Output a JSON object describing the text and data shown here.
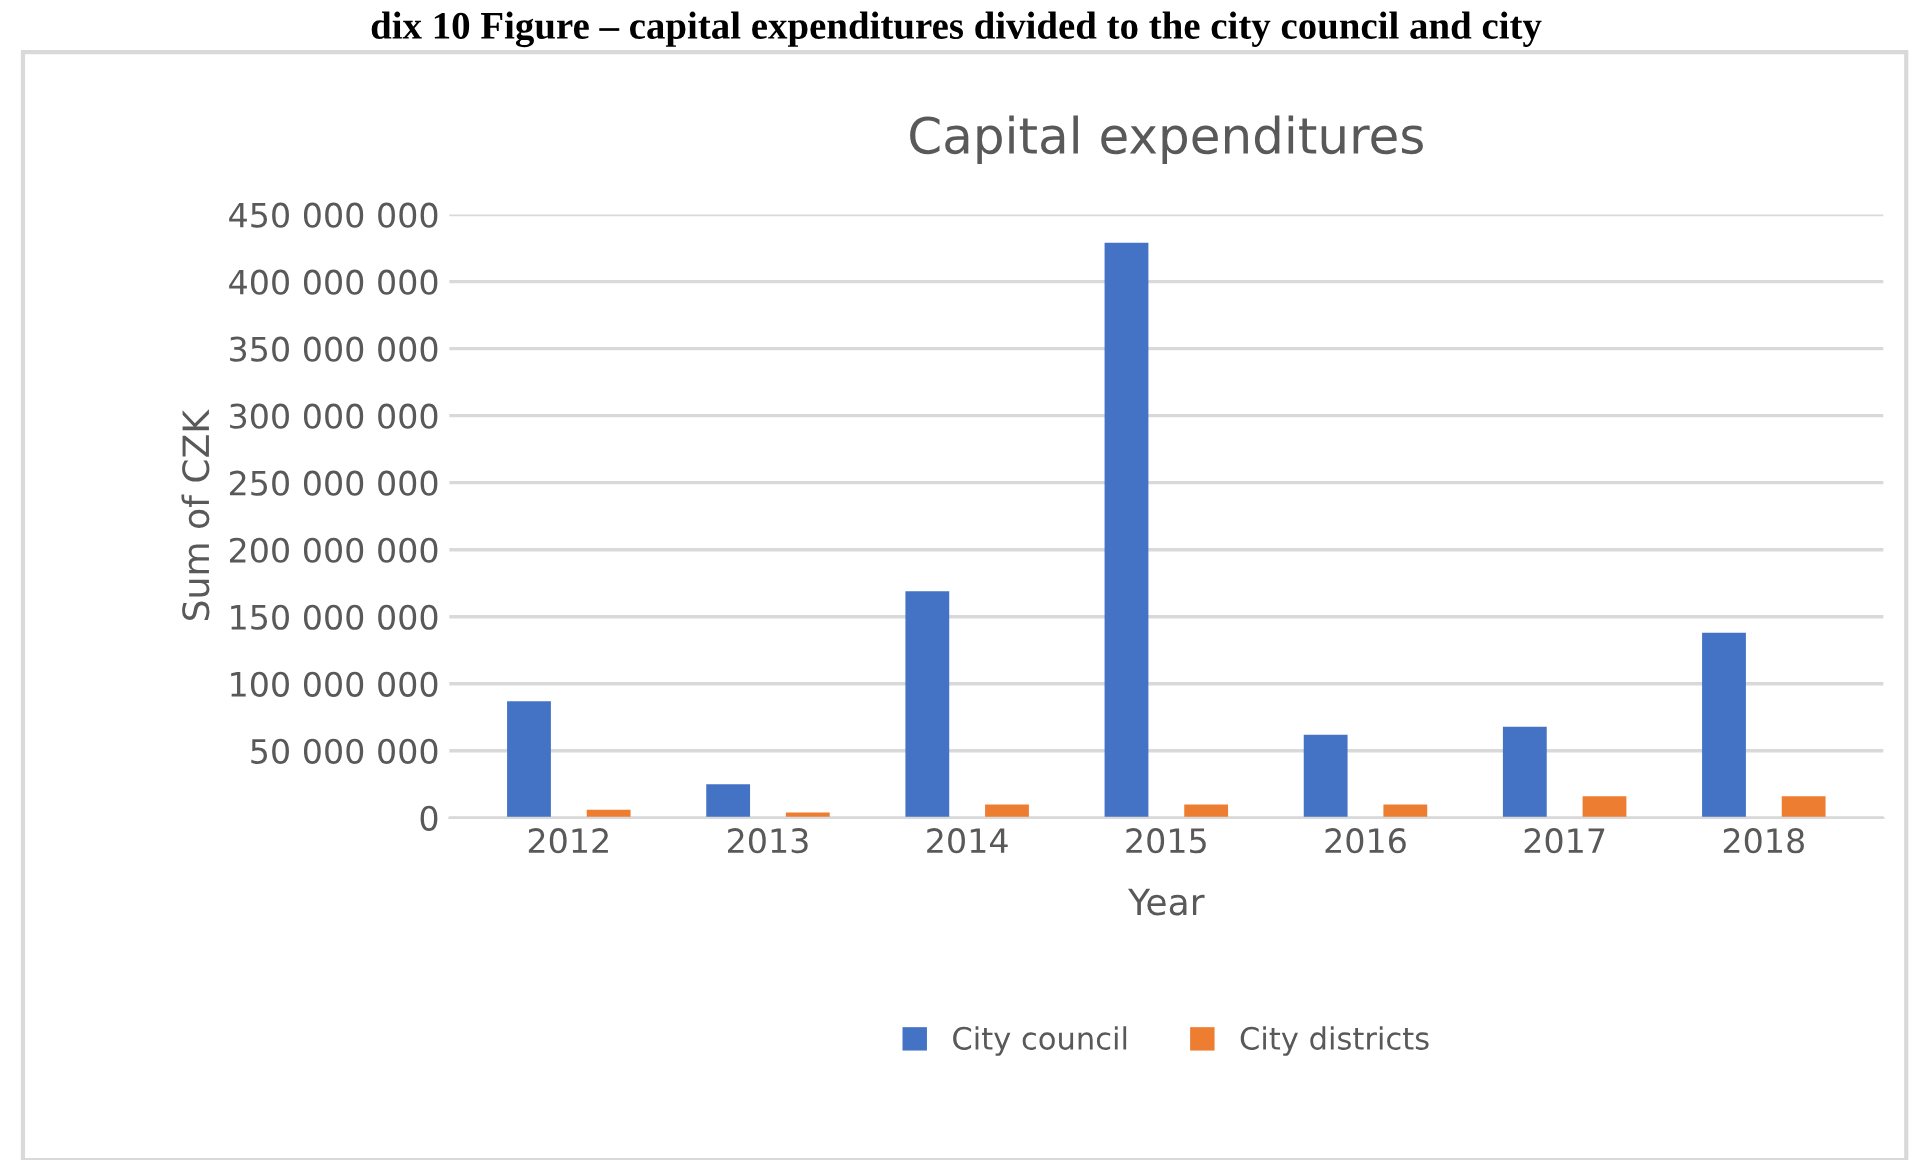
{
  "chart_data": {
    "type": "bar",
    "title": "Capital expenditures",
    "xlabel": "Year",
    "ylabel": "Sum of CZK",
    "annotations": [
      "dix 10 Figure – capital expenditures divided to the city council and city"
    ],
    "categories": [
      "2012",
      "2013",
      "2014",
      "2015",
      "2016",
      "2017",
      "2018"
    ],
    "series": [
      {
        "name": "City council",
        "color": "#4472c4",
        "values": [
          87000000,
          25000000,
          169000000,
          429000000,
          62000000,
          68000000,
          138000000
        ]
      },
      {
        "name": "City districts",
        "color": "#ed7d31",
        "values": [
          6000000,
          4000000,
          10000000,
          10000000,
          10000000,
          16000000,
          16000000
        ]
      }
    ],
    "ylim": [
      0,
      450000000
    ],
    "yticks": [
      {
        "value": 0,
        "label": "0"
      },
      {
        "value": 50000000,
        "label": "50 000 000"
      },
      {
        "value": 100000000,
        "label": "100 000 000"
      },
      {
        "value": 150000000,
        "label": "150 000 000"
      },
      {
        "value": 200000000,
        "label": "200 000 000"
      },
      {
        "value": 250000000,
        "label": "250 000 000"
      },
      {
        "value": 300000000,
        "label": "300 000 000"
      },
      {
        "value": 350000000,
        "label": "350 000 000"
      },
      {
        "value": 400000000,
        "label": "400 000 000"
      },
      {
        "value": 450000000,
        "label": "450 000 000"
      }
    ],
    "grid": "y",
    "legend": "bottom"
  }
}
